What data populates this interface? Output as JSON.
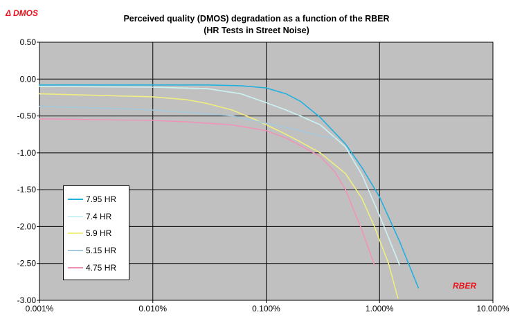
{
  "chart_data": {
    "type": "line",
    "title": "Perceived quality (DMOS) degradation as a function of the RBER",
    "subtitle": "(HR Tests in Street Noise)",
    "ylabel": "Δ DMOS",
    "xlabel": "RBER",
    "xscale": "log",
    "xlim": [
      0.001,
      10
    ],
    "ylim": [
      -3.0,
      0.5
    ],
    "xticks": [
      "0.001%",
      "0.010%",
      "0.100%",
      "1.000%",
      "10.000%"
    ],
    "yticks": [
      "0.50",
      "0.00",
      "-0.50",
      "-1.00",
      "-1.50",
      "-2.00",
      "-2.50",
      "-3.00"
    ],
    "grid": true,
    "legend_position": "bottom-left",
    "series": [
      {
        "name": "7.95 HR",
        "color": "#1fb0e0",
        "x": [
          0.001,
          0.01,
          0.03,
          0.06,
          0.1,
          0.15,
          0.2,
          0.3,
          0.5,
          0.7,
          1.0,
          1.5,
          2.2
        ],
        "y": [
          -0.08,
          -0.08,
          -0.08,
          -0.09,
          -0.12,
          -0.2,
          -0.3,
          -0.52,
          -0.88,
          -1.2,
          -1.6,
          -2.2,
          -2.83
        ]
      },
      {
        "name": "7.4 HR",
        "color": "#cdf2f4",
        "x": [
          0.001,
          0.01,
          0.03,
          0.06,
          0.1,
          0.15,
          0.2,
          0.3,
          0.5,
          0.7,
          1.0,
          1.5
        ],
        "y": [
          -0.1,
          -0.11,
          -0.13,
          -0.2,
          -0.32,
          -0.42,
          -0.5,
          -0.62,
          -0.92,
          -1.3,
          -1.85,
          -2.52
        ]
      },
      {
        "name": "5.9 HR",
        "color": "#f0ee80",
        "x": [
          0.001,
          0.01,
          0.02,
          0.03,
          0.05,
          0.08,
          0.1,
          0.15,
          0.2,
          0.3,
          0.5,
          0.7,
          0.9,
          1.2,
          1.45
        ],
        "y": [
          -0.2,
          -0.24,
          -0.28,
          -0.33,
          -0.42,
          -0.55,
          -0.62,
          -0.75,
          -0.85,
          -1.0,
          -1.28,
          -1.62,
          -2.0,
          -2.5,
          -2.97
        ]
      },
      {
        "name": "5.15 HR",
        "color": "#a4c8dc",
        "x": [
          0.001,
          0.005,
          0.01,
          0.02,
          0.05,
          0.1,
          0.2,
          0.3,
          0.4
        ],
        "y": [
          -0.37,
          -0.4,
          -0.42,
          -0.45,
          -0.5,
          -0.6,
          -0.7,
          -0.77,
          -0.8
        ]
      },
      {
        "name": "4.75 HR",
        "color": "#ee94b8",
        "x": [
          0.001,
          0.01,
          0.02,
          0.05,
          0.1,
          0.15,
          0.2,
          0.3,
          0.4,
          0.5,
          0.7,
          0.9
        ],
        "y": [
          -0.54,
          -0.56,
          -0.58,
          -0.62,
          -0.7,
          -0.8,
          -0.9,
          -1.05,
          -1.25,
          -1.5,
          -2.05,
          -2.52
        ]
      }
    ]
  }
}
